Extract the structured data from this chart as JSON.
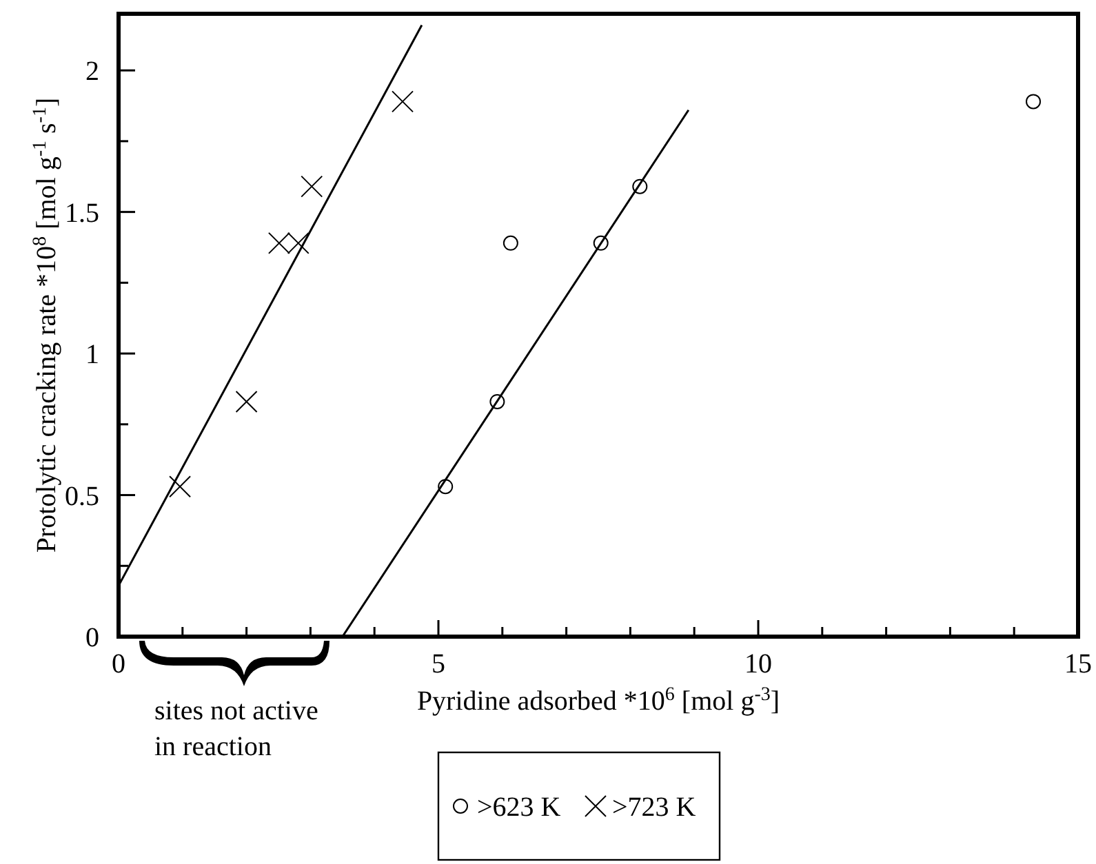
{
  "chart_data": {
    "type": "scatter",
    "xlabel": "Pyridine adsorbed *10$^{6}$ [mol g$^{-3}$]",
    "ylabel": "Protolytic cracking rate *10$^{8}$ [mol g$^{-1}$ s$^{-1}$]",
    "xlim": [
      0,
      15
    ],
    "ylim": [
      0,
      2.2
    ],
    "xticks": [
      0,
      {
        "value": 1,
        "label": null
      },
      {
        "value": 2,
        "label": null
      },
      {
        "value": 3,
        "label": null
      },
      {
        "value": 4,
        "label": null
      },
      5,
      {
        "value": 6,
        "label": null
      },
      {
        "value": 7,
        "label": null
      },
      {
        "value": 8,
        "label": null
      },
      {
        "value": 9,
        "label": null
      },
      10,
      {
        "value": 11,
        "label": null
      },
      {
        "value": 12,
        "label": null
      },
      {
        "value": 13,
        "label": null
      },
      {
        "value": 14,
        "label": null
      },
      15
    ],
    "yticks": [
      0,
      {
        "value": 0.25,
        "label": null
      },
      0.5,
      {
        "value": 0.75,
        "label": null
      },
      1,
      {
        "value": 1.25,
        "label": null
      },
      1.5,
      {
        "value": 1.75,
        "label": null
      },
      2
    ],
    "grid": false,
    "legend": "bottom",
    "annotations": [
      "sites not active in reaction"
    ],
    "series": [
      {
        "name": ">623 K",
        "type": "scatter",
        "marker": "circle",
        "color": "#000000",
        "x": [
          5.11,
          5.92,
          6.13,
          7.54,
          8.15,
          14.3
        ],
        "values": [
          0.53,
          0.83,
          1.39,
          1.39,
          1.59,
          1.89
        ]
      },
      {
        "name": ">723 K",
        "type": "scatter",
        "marker": "cross",
        "color": "#000000",
        "x": [
          0.96,
          2.0,
          2.51,
          2.81,
          3.02,
          4.44
        ],
        "values": [
          0.53,
          0.83,
          1.39,
          1.39,
          1.59,
          1.89
        ]
      },
      {
        "type": "line",
        "marker": "none",
        "line_style": "solid",
        "color": "#000000",
        "x": [
          0,
          4.74
        ],
        "values": [
          0.18,
          2.16
        ]
      },
      {
        "type": "line",
        "marker": "none",
        "line_style": "solid",
        "color": "#000000",
        "x": [
          3.5,
          8.91
        ],
        "values": [
          0,
          1.86
        ]
      }
    ]
  }
}
